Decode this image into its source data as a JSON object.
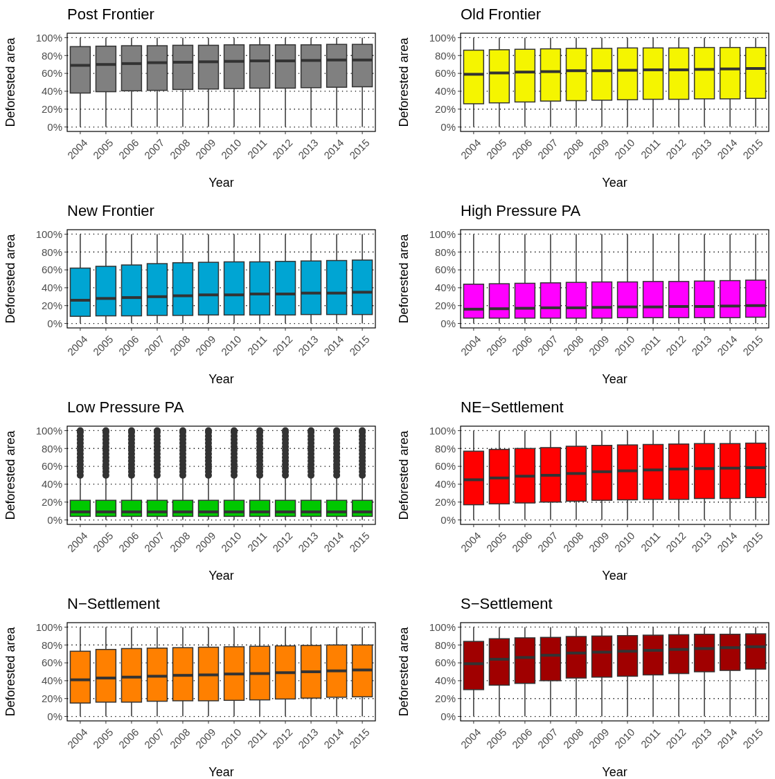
{
  "chart_data": [
    {
      "type": "box",
      "title": "Post Frontier",
      "xlabel": "Year",
      "ylabel": "Deforested area",
      "color": "#808080",
      "grid": true,
      "ylim": [
        -5,
        105
      ],
      "yticks": [
        {
          "value": 0,
          "label": "0%"
        },
        {
          "value": 20,
          "label": "20%"
        },
        {
          "value": 40,
          "label": "40%"
        },
        {
          "value": 60,
          "label": "60%"
        },
        {
          "value": 80,
          "label": "80%"
        },
        {
          "value": 100,
          "label": "100%"
        }
      ],
      "categories": [
        "2004",
        "2005",
        "2006",
        "2007",
        "2008",
        "2009",
        "2010",
        "2011",
        "2012",
        "2013",
        "2014",
        "2015"
      ],
      "boxes": [
        {
          "low": 0,
          "q1": 38,
          "median": 69,
          "q3": 90,
          "high": 100
        },
        {
          "low": 0,
          "q1": 39.5,
          "median": 70,
          "q3": 90.5,
          "high": 100
        },
        {
          "low": 0,
          "q1": 40.5,
          "median": 71,
          "q3": 91,
          "high": 100
        },
        {
          "low": 0,
          "q1": 41,
          "median": 72,
          "q3": 91,
          "high": 100
        },
        {
          "low": 0,
          "q1": 42,
          "median": 72.5,
          "q3": 91.5,
          "high": 100
        },
        {
          "low": 0,
          "q1": 42.5,
          "median": 73,
          "q3": 91.5,
          "high": 100
        },
        {
          "low": 0,
          "q1": 43,
          "median": 73.5,
          "q3": 92,
          "high": 100
        },
        {
          "low": 0,
          "q1": 43.5,
          "median": 74,
          "q3": 92,
          "high": 100
        },
        {
          "low": 0,
          "q1": 43.5,
          "median": 74,
          "q3": 92,
          "high": 100
        },
        {
          "low": 0,
          "q1": 44,
          "median": 74.5,
          "q3": 92,
          "high": 100
        },
        {
          "low": 0,
          "q1": 44.5,
          "median": 75,
          "q3": 92.5,
          "high": 100
        },
        {
          "low": 0,
          "q1": 45,
          "median": 75,
          "q3": 92.5,
          "high": 100
        }
      ]
    },
    {
      "type": "box",
      "title": "Old Frontier",
      "xlabel": "Year",
      "ylabel": "Deforested area",
      "color": "#f5f500",
      "grid": true,
      "ylim": [
        -5,
        105
      ],
      "yticks": [
        {
          "value": 0,
          "label": "0%"
        },
        {
          "value": 20,
          "label": "20%"
        },
        {
          "value": 40,
          "label": "40%"
        },
        {
          "value": 60,
          "label": "60%"
        },
        {
          "value": 80,
          "label": "80%"
        },
        {
          "value": 100,
          "label": "100%"
        }
      ],
      "categories": [
        "2004",
        "2005",
        "2006",
        "2007",
        "2008",
        "2009",
        "2010",
        "2011",
        "2012",
        "2013",
        "2014",
        "2015"
      ],
      "boxes": [
        {
          "low": 0,
          "q1": 26,
          "median": 59,
          "q3": 86,
          "high": 100
        },
        {
          "low": 0,
          "q1": 27,
          "median": 60.5,
          "q3": 86.5,
          "high": 100
        },
        {
          "low": 0,
          "q1": 28,
          "median": 61.5,
          "q3": 87,
          "high": 100
        },
        {
          "low": 0,
          "q1": 29,
          "median": 62,
          "q3": 87.5,
          "high": 100
        },
        {
          "low": 0,
          "q1": 29.5,
          "median": 63,
          "q3": 88,
          "high": 100
        },
        {
          "low": 0,
          "q1": 30,
          "median": 63,
          "q3": 88,
          "high": 100
        },
        {
          "low": 0,
          "q1": 30.5,
          "median": 63.5,
          "q3": 88.5,
          "high": 100
        },
        {
          "low": 0,
          "q1": 31,
          "median": 64,
          "q3": 88.5,
          "high": 100
        },
        {
          "low": 0,
          "q1": 31,
          "median": 64,
          "q3": 88.5,
          "high": 100
        },
        {
          "low": 0,
          "q1": 31.5,
          "median": 64.5,
          "q3": 89,
          "high": 100
        },
        {
          "low": 0,
          "q1": 31.5,
          "median": 65,
          "q3": 89,
          "high": 100
        },
        {
          "low": 0,
          "q1": 32,
          "median": 65.5,
          "q3": 89,
          "high": 100
        }
      ]
    },
    {
      "type": "box",
      "title": "New Frontier",
      "xlabel": "Year",
      "ylabel": "Deforested area",
      "color": "#00a5d3",
      "grid": true,
      "ylim": [
        -5,
        105
      ],
      "yticks": [
        {
          "value": 0,
          "label": "0%"
        },
        {
          "value": 20,
          "label": "20%"
        },
        {
          "value": 40,
          "label": "40%"
        },
        {
          "value": 60,
          "label": "60%"
        },
        {
          "value": 80,
          "label": "80%"
        },
        {
          "value": 100,
          "label": "100%"
        }
      ],
      "categories": [
        "2004",
        "2005",
        "2006",
        "2007",
        "2008",
        "2009",
        "2010",
        "2011",
        "2012",
        "2013",
        "2014",
        "2015"
      ],
      "boxes": [
        {
          "low": 0,
          "q1": 8,
          "median": 26,
          "q3": 62,
          "high": 100
        },
        {
          "low": 0,
          "q1": 8.5,
          "median": 28,
          "q3": 64,
          "high": 100
        },
        {
          "low": 0,
          "q1": 8.5,
          "median": 29,
          "q3": 65.5,
          "high": 100
        },
        {
          "low": 0,
          "q1": 9,
          "median": 30,
          "q3": 67,
          "high": 100
        },
        {
          "low": 0,
          "q1": 9,
          "median": 31,
          "q3": 68,
          "high": 100
        },
        {
          "low": 0,
          "q1": 9.5,
          "median": 32,
          "q3": 68.5,
          "high": 100
        },
        {
          "low": 0,
          "q1": 9.5,
          "median": 32,
          "q3": 69,
          "high": 100
        },
        {
          "low": 0,
          "q1": 9.5,
          "median": 33,
          "q3": 69,
          "high": 100
        },
        {
          "low": 0,
          "q1": 9.5,
          "median": 33,
          "q3": 69.5,
          "high": 100
        },
        {
          "low": 0,
          "q1": 10,
          "median": 34,
          "q3": 70,
          "high": 100
        },
        {
          "low": 0,
          "q1": 10,
          "median": 34,
          "q3": 70.5,
          "high": 100
        },
        {
          "low": 0,
          "q1": 10,
          "median": 35,
          "q3": 71,
          "high": 100
        }
      ]
    },
    {
      "type": "box",
      "title": "High Pressure PA",
      "xlabel": "Year",
      "ylabel": "Deforested area",
      "color": "#ff00ff",
      "grid": true,
      "ylim": [
        -5,
        105
      ],
      "yticks": [
        {
          "value": 0,
          "label": "0%"
        },
        {
          "value": 20,
          "label": "20%"
        },
        {
          "value": 40,
          "label": "40%"
        },
        {
          "value": 60,
          "label": "60%"
        },
        {
          "value": 80,
          "label": "80%"
        },
        {
          "value": 100,
          "label": "100%"
        }
      ],
      "categories": [
        "2004",
        "2005",
        "2006",
        "2007",
        "2008",
        "2009",
        "2010",
        "2011",
        "2012",
        "2013",
        "2014",
        "2015"
      ],
      "boxes": [
        {
          "low": 0,
          "q1": 6,
          "median": 16,
          "q3": 44,
          "high": 100
        },
        {
          "low": 0,
          "q1": 6,
          "median": 16.5,
          "q3": 44.5,
          "high": 100
        },
        {
          "low": 0,
          "q1": 6,
          "median": 17,
          "q3": 45,
          "high": 100
        },
        {
          "low": 0,
          "q1": 6,
          "median": 17.5,
          "q3": 45.5,
          "high": 100
        },
        {
          "low": 0,
          "q1": 6,
          "median": 17.5,
          "q3": 46,
          "high": 100
        },
        {
          "low": 0,
          "q1": 6,
          "median": 18,
          "q3": 46.5,
          "high": 100
        },
        {
          "low": 0,
          "q1": 6.5,
          "median": 18.5,
          "q3": 46.5,
          "high": 100
        },
        {
          "low": 0,
          "q1": 6.5,
          "median": 18.5,
          "q3": 47,
          "high": 100
        },
        {
          "low": 0,
          "q1": 6.5,
          "median": 19,
          "q3": 47,
          "high": 100
        },
        {
          "low": 0,
          "q1": 6.5,
          "median": 19,
          "q3": 47.5,
          "high": 100
        },
        {
          "low": 0,
          "q1": 6.5,
          "median": 19.5,
          "q3": 48,
          "high": 100
        },
        {
          "low": 0,
          "q1": 7,
          "median": 20,
          "q3": 48.5,
          "high": 100
        }
      ]
    },
    {
      "type": "box",
      "title": "Low Pressure PA",
      "xlabel": "Year",
      "ylabel": "Deforested area",
      "color": "#00c800",
      "grid": true,
      "ylim": [
        -5,
        105
      ],
      "yticks": [
        {
          "value": 0,
          "label": "0%"
        },
        {
          "value": 20,
          "label": "20%"
        },
        {
          "value": 40,
          "label": "40%"
        },
        {
          "value": 60,
          "label": "60%"
        },
        {
          "value": 80,
          "label": "80%"
        },
        {
          "value": 100,
          "label": "100%"
        }
      ],
      "categories": [
        "2004",
        "2005",
        "2006",
        "2007",
        "2008",
        "2009",
        "2010",
        "2011",
        "2012",
        "2013",
        "2014",
        "2015"
      ],
      "boxes": [
        {
          "low": 0,
          "q1": 4,
          "median": 9,
          "q3": 22,
          "high": 48,
          "outliers": [
            50,
            54,
            58,
            62,
            66,
            70,
            74,
            78,
            82,
            86,
            90,
            94,
            98,
            100
          ]
        },
        {
          "low": 0,
          "q1": 4,
          "median": 9,
          "q3": 22,
          "high": 48,
          "outliers": [
            50,
            54,
            58,
            62,
            66,
            70,
            74,
            78,
            82,
            86,
            90,
            94,
            98,
            100
          ]
        },
        {
          "low": 0,
          "q1": 4,
          "median": 9,
          "q3": 22,
          "high": 48,
          "outliers": [
            50,
            54,
            58,
            62,
            66,
            70,
            74,
            78,
            82,
            86,
            90,
            94,
            98,
            100
          ]
        },
        {
          "low": 0,
          "q1": 4,
          "median": 9,
          "q3": 22,
          "high": 48,
          "outliers": [
            50,
            54,
            58,
            62,
            66,
            70,
            74,
            78,
            82,
            86,
            90,
            94,
            98,
            100
          ]
        },
        {
          "low": 0,
          "q1": 4,
          "median": 9,
          "q3": 22,
          "high": 48,
          "outliers": [
            50,
            54,
            58,
            62,
            66,
            70,
            74,
            78,
            82,
            86,
            90,
            94,
            98,
            100
          ]
        },
        {
          "low": 0,
          "q1": 4,
          "median": 9,
          "q3": 22,
          "high": 48,
          "outliers": [
            50,
            54,
            58,
            62,
            66,
            70,
            74,
            78,
            82,
            86,
            90,
            94,
            98,
            100
          ]
        },
        {
          "low": 0,
          "q1": 4,
          "median": 9,
          "q3": 22,
          "high": 48,
          "outliers": [
            50,
            54,
            58,
            62,
            66,
            70,
            74,
            78,
            82,
            86,
            90,
            94,
            98,
            100
          ]
        },
        {
          "low": 0,
          "q1": 4,
          "median": 9,
          "q3": 22,
          "high": 48,
          "outliers": [
            50,
            54,
            58,
            62,
            66,
            70,
            74,
            78,
            82,
            86,
            90,
            94,
            98,
            100
          ]
        },
        {
          "low": 0,
          "q1": 4,
          "median": 9,
          "q3": 22,
          "high": 48,
          "outliers": [
            50,
            54,
            58,
            62,
            66,
            70,
            74,
            78,
            82,
            86,
            90,
            94,
            98,
            100
          ]
        },
        {
          "low": 0,
          "q1": 4,
          "median": 9,
          "q3": 22,
          "high": 48,
          "outliers": [
            50,
            54,
            58,
            62,
            66,
            70,
            74,
            78,
            82,
            86,
            90,
            94,
            98,
            100
          ]
        },
        {
          "low": 0,
          "q1": 4,
          "median": 9,
          "q3": 22,
          "high": 48,
          "outliers": [
            50,
            54,
            58,
            62,
            66,
            70,
            74,
            78,
            82,
            86,
            90,
            94,
            98,
            100
          ]
        },
        {
          "low": 0,
          "q1": 4,
          "median": 9,
          "q3": 22,
          "high": 48,
          "outliers": [
            50,
            54,
            58,
            62,
            66,
            70,
            74,
            78,
            82,
            86,
            90,
            94,
            98,
            100
          ]
        }
      ]
    },
    {
      "type": "box",
      "title": "NE−Settlement",
      "xlabel": "Year",
      "ylabel": "Deforested area",
      "color": "#ff0000",
      "grid": true,
      "ylim": [
        -5,
        105
      ],
      "yticks": [
        {
          "value": 0,
          "label": "0%"
        },
        {
          "value": 20,
          "label": "20%"
        },
        {
          "value": 40,
          "label": "40%"
        },
        {
          "value": 60,
          "label": "60%"
        },
        {
          "value": 80,
          "label": "80%"
        },
        {
          "value": 100,
          "label": "100%"
        }
      ],
      "categories": [
        "2004",
        "2005",
        "2006",
        "2007",
        "2008",
        "2009",
        "2010",
        "2011",
        "2012",
        "2013",
        "2014",
        "2015"
      ],
      "boxes": [
        {
          "low": 0,
          "q1": 17,
          "median": 45,
          "q3": 77,
          "high": 100
        },
        {
          "low": 0,
          "q1": 18,
          "median": 47,
          "q3": 79,
          "high": 100
        },
        {
          "low": 0,
          "q1": 19,
          "median": 49,
          "q3": 80,
          "high": 100
        },
        {
          "low": 0,
          "q1": 20,
          "median": 50,
          "q3": 81,
          "high": 100
        },
        {
          "low": 0,
          "q1": 21,
          "median": 52,
          "q3": 82.5,
          "high": 100
        },
        {
          "low": 0,
          "q1": 22,
          "median": 54,
          "q3": 83.5,
          "high": 100
        },
        {
          "low": 0,
          "q1": 22.5,
          "median": 55,
          "q3": 84,
          "high": 100
        },
        {
          "low": 0,
          "q1": 23,
          "median": 56,
          "q3": 84.5,
          "high": 100
        },
        {
          "low": 0,
          "q1": 23,
          "median": 57,
          "q3": 85,
          "high": 100
        },
        {
          "low": 0,
          "q1": 24,
          "median": 57.5,
          "q3": 85.5,
          "high": 100
        },
        {
          "low": 0,
          "q1": 24,
          "median": 58,
          "q3": 85.5,
          "high": 100
        },
        {
          "low": 0,
          "q1": 25,
          "median": 58.5,
          "q3": 86,
          "high": 100
        }
      ]
    },
    {
      "type": "box",
      "title": "N−Settlement",
      "xlabel": "Year",
      "ylabel": "Deforested area",
      "color": "#ff8000",
      "grid": true,
      "ylim": [
        -5,
        105
      ],
      "yticks": [
        {
          "value": 0,
          "label": "0%"
        },
        {
          "value": 20,
          "label": "20%"
        },
        {
          "value": 40,
          "label": "40%"
        },
        {
          "value": 60,
          "label": "60%"
        },
        {
          "value": 80,
          "label": "80%"
        },
        {
          "value": 100,
          "label": "100%"
        }
      ],
      "categories": [
        "2004",
        "2005",
        "2006",
        "2007",
        "2008",
        "2009",
        "2010",
        "2011",
        "2012",
        "2013",
        "2014",
        "2015"
      ],
      "boxes": [
        {
          "low": 0,
          "q1": 15,
          "median": 41,
          "q3": 73,
          "high": 100
        },
        {
          "low": 0,
          "q1": 16,
          "median": 43,
          "q3": 75,
          "high": 100
        },
        {
          "low": 0,
          "q1": 16,
          "median": 44,
          "q3": 76,
          "high": 100
        },
        {
          "low": 0,
          "q1": 17,
          "median": 45,
          "q3": 76.5,
          "high": 100
        },
        {
          "low": 0,
          "q1": 17.5,
          "median": 46,
          "q3": 77,
          "high": 100
        },
        {
          "low": 0,
          "q1": 17.5,
          "median": 46.5,
          "q3": 77.5,
          "high": 100
        },
        {
          "low": 0,
          "q1": 18,
          "median": 47.5,
          "q3": 78,
          "high": 100
        },
        {
          "low": 0,
          "q1": 18.5,
          "median": 48,
          "q3": 78.5,
          "high": 100
        },
        {
          "low": 0,
          "q1": 19.5,
          "median": 49,
          "q3": 79,
          "high": 100
        },
        {
          "low": 0,
          "q1": 20.5,
          "median": 50,
          "q3": 79.5,
          "high": 100
        },
        {
          "low": 0,
          "q1": 21.5,
          "median": 51,
          "q3": 80,
          "high": 100
        },
        {
          "low": 0,
          "q1": 22,
          "median": 52,
          "q3": 80,
          "high": 100
        }
      ]
    },
    {
      "type": "box",
      "title": "S−Settlement",
      "xlabel": "Year",
      "ylabel": "Deforested area",
      "color": "#a00000",
      "grid": true,
      "ylim": [
        -5,
        105
      ],
      "yticks": [
        {
          "value": 0,
          "label": "0%"
        },
        {
          "value": 20,
          "label": "20%"
        },
        {
          "value": 40,
          "label": "40%"
        },
        {
          "value": 60,
          "label": "60%"
        },
        {
          "value": 80,
          "label": "80%"
        },
        {
          "value": 100,
          "label": "100%"
        }
      ],
      "categories": [
        "2004",
        "2005",
        "2006",
        "2007",
        "2008",
        "2009",
        "2010",
        "2011",
        "2012",
        "2013",
        "2014",
        "2015"
      ],
      "boxes": [
        {
          "low": 0,
          "q1": 30,
          "median": 59,
          "q3": 84,
          "high": 100
        },
        {
          "low": 0,
          "q1": 35,
          "median": 64,
          "q3": 87,
          "high": 100
        },
        {
          "low": 0,
          "q1": 37,
          "median": 66,
          "q3": 88,
          "high": 100
        },
        {
          "low": 0,
          "q1": 40,
          "median": 68.5,
          "q3": 88.5,
          "high": 100
        },
        {
          "low": 0,
          "q1": 43,
          "median": 71,
          "q3": 89.5,
          "high": 100
        },
        {
          "low": 0,
          "q1": 44,
          "median": 72,
          "q3": 90,
          "high": 100
        },
        {
          "low": 0,
          "q1": 45,
          "median": 73,
          "q3": 90.5,
          "high": 100
        },
        {
          "low": 0,
          "q1": 46.5,
          "median": 74,
          "q3": 91,
          "high": 100
        },
        {
          "low": 0,
          "q1": 48,
          "median": 75,
          "q3": 91.5,
          "high": 100
        },
        {
          "low": 0,
          "q1": 50,
          "median": 76,
          "q3": 92,
          "high": 100
        },
        {
          "low": 0,
          "q1": 51.5,
          "median": 77,
          "q3": 92,
          "high": 100
        },
        {
          "low": 0,
          "q1": 53,
          "median": 78,
          "q3": 92.5,
          "high": 100
        }
      ]
    }
  ]
}
